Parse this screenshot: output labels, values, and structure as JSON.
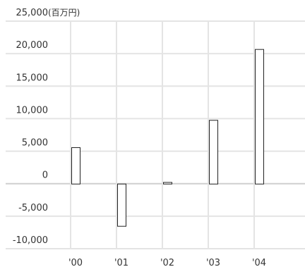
{
  "chart_data": {
    "type": "bar",
    "title": "",
    "xlabel": "",
    "ylabel": "",
    "y_unit_label": "(百万円)",
    "categories": [
      "'00",
      "'01",
      "'02",
      "'03",
      "'04"
    ],
    "values": [
      5600,
      -6500,
      250,
      9800,
      20700
    ],
    "ylim": [
      -10000,
      25000
    ],
    "y_ticks": [
      25000,
      20000,
      15000,
      10000,
      5000,
      0,
      -5000,
      -10000
    ],
    "y_tick_labels": [
      "25,000",
      "20,000",
      "15,000",
      "10,000",
      "5,000",
      "0",
      "-5,000",
      "-10,000"
    ],
    "grid": true,
    "colors": {
      "bar_fill": "#ffffff",
      "bar_stroke": "#222222",
      "grid": "#e4e4e4",
      "zero_line": "#cfcfcf",
      "text": "#333333"
    }
  }
}
